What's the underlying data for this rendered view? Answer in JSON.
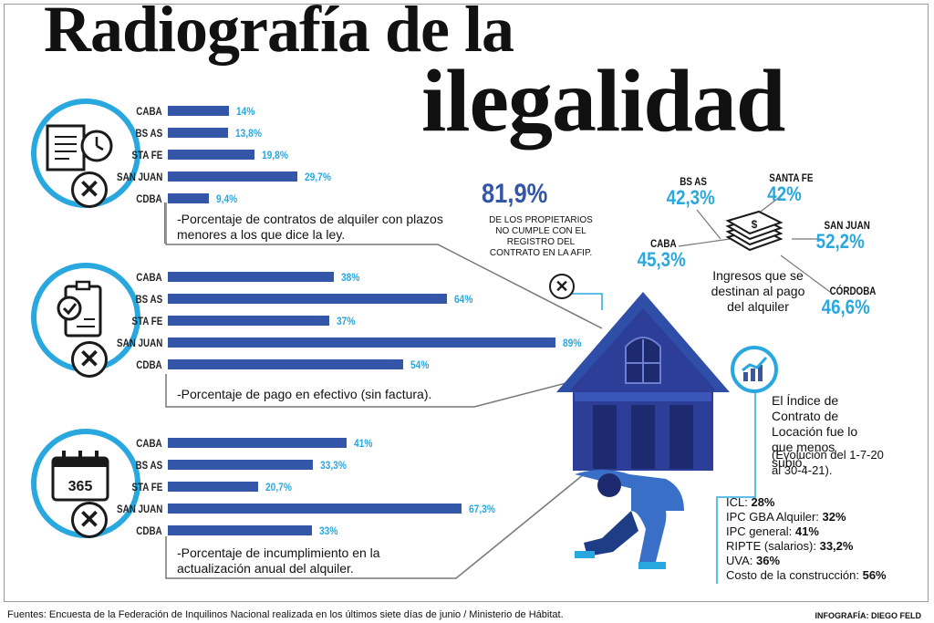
{
  "title": {
    "line1": "Radiografía de la",
    "line2": "ilegalidad"
  },
  "colors": {
    "bar": "#3456a8",
    "value": "#29a8e0",
    "ring": "#29a8e0",
    "house": "#3456a8"
  },
  "chart_data": [
    {
      "type": "bar",
      "orientation": "horizontal",
      "categories": [
        "CABA",
        "BS AS",
        "STA FE",
        "SAN JUAN",
        "CDBA"
      ],
      "values": [
        14,
        13.8,
        19.8,
        29.7,
        9.4
      ],
      "labels": [
        "14%",
        "13,8%",
        "19,8%",
        "29,7%",
        "9,4%"
      ],
      "caption": "-Porcentaje de contratos de alquiler con plazos menores a los que dice la ley.",
      "xlim": [
        0,
        100
      ]
    },
    {
      "type": "bar",
      "orientation": "horizontal",
      "categories": [
        "CABA",
        "BS AS",
        "STA FE",
        "SAN JUAN",
        "CDBA"
      ],
      "values": [
        38,
        64,
        37,
        89,
        54
      ],
      "labels": [
        "38%",
        "64%",
        "37%",
        "89%",
        "54%"
      ],
      "caption": "-Porcentaje de pago en efectivo (sin factura).",
      "xlim": [
        0,
        100
      ]
    },
    {
      "type": "bar",
      "orientation": "horizontal",
      "categories": [
        "CABA",
        "BS AS",
        "STA FE",
        "SAN JUAN",
        "CDBA"
      ],
      "values": [
        41,
        33.3,
        20.7,
        67.3,
        33
      ],
      "labels": [
        "41%",
        "33,3%",
        "20,7%",
        "67,3%",
        "33%"
      ],
      "caption": "-Porcentaje de incumplimiento en la actualización anual del alquiler.",
      "xlim": [
        0,
        100
      ]
    }
  ],
  "registry": {
    "percent": "81,9%",
    "note": "DE LOS PROPIETARIOS NO CUMPLE CON EL REGISTRO DEL CONTRATO EN LA AFIP."
  },
  "income": {
    "caption": "Ingresos que se destinan al pago del alquiler",
    "provinces": [
      {
        "label": "BS AS",
        "value": "42,3%"
      },
      {
        "label": "SANTA FE",
        "value": "42%"
      },
      {
        "label": "CABA",
        "value": "45,3%"
      },
      {
        "label": "SAN JUAN",
        "value": "52,2%"
      },
      {
        "label": "CÓRDOBA",
        "value": "46,6%"
      }
    ]
  },
  "icl": {
    "text": "El Índice de Contrato de Locación fue lo que menos subió.",
    "period": "(Evolución del 1-7-20 al 30-4-21).",
    "items": [
      {
        "label": "ICL:",
        "value": "28%"
      },
      {
        "label": "IPC GBA Alquiler:",
        "value": "32%"
      },
      {
        "label": "IPC general:",
        "value": "41%"
      },
      {
        "label": "RIPTE (salarios):",
        "value": "33,2%"
      },
      {
        "label": "UVA:",
        "value": "36%"
      },
      {
        "label": "Costo de la construcción:",
        "value": "56%"
      }
    ]
  },
  "icons": {
    "panel1": "contract-clock-icon",
    "panel2": "checklist-icon",
    "panel3": "calendar-365-icon",
    "cancel": "x-circle-icon",
    "money": "money-stack-icon",
    "chart": "chart-up-icon"
  },
  "calendar_text": "365",
  "footer": {
    "sources": "Fuentes: Encuesta de la Federación de Inquilinos Nacional realizada en los últimos siete días de junio / Ministerio de Hábitat.",
    "credit": "INFOGRAFÍA: DIEGO FELD"
  }
}
